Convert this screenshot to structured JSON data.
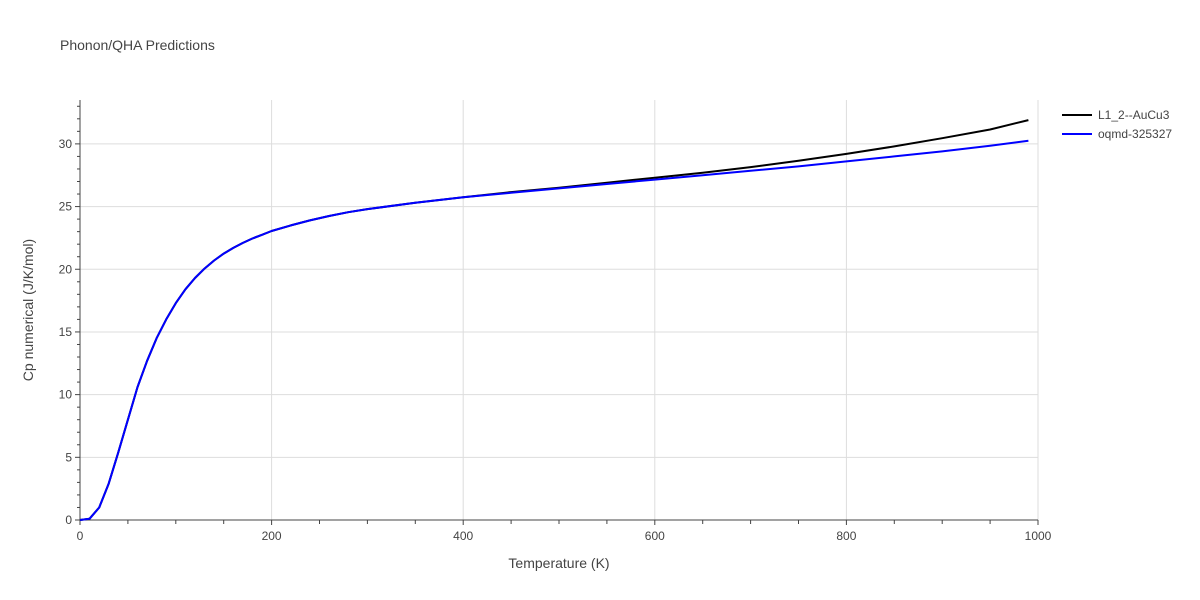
{
  "chart_data": {
    "type": "line",
    "title": "Phonon/QHA Predictions",
    "xlabel": "Temperature (K)",
    "ylabel": "Cp numerical (J/K/mol)",
    "xlim": [
      0,
      1000
    ],
    "ylim": [
      0,
      33.5
    ],
    "xticks": [
      0,
      200,
      400,
      600,
      800,
      1000
    ],
    "yticks": [
      0,
      5,
      10,
      15,
      20,
      25,
      30
    ],
    "grid": true,
    "legend_position": "top-right",
    "series": [
      {
        "name": "L1_2--AuCu3",
        "color": "#000000",
        "x": [
          0,
          10,
          20,
          30,
          40,
          50,
          60,
          70,
          80,
          90,
          100,
          110,
          120,
          130,
          140,
          150,
          160,
          170,
          180,
          190,
          200,
          220,
          240,
          260,
          280,
          300,
          350,
          400,
          450,
          500,
          550,
          600,
          650,
          700,
          750,
          800,
          850,
          900,
          950,
          990
        ],
        "y": [
          0,
          0.1,
          1.0,
          2.9,
          5.4,
          8.0,
          10.6,
          12.7,
          14.5,
          16.0,
          17.3,
          18.4,
          19.3,
          20.05,
          20.7,
          21.25,
          21.7,
          22.1,
          22.45,
          22.75,
          23.05,
          23.5,
          23.9,
          24.25,
          24.55,
          24.8,
          25.3,
          25.75,
          26.15,
          26.5,
          26.9,
          27.3,
          27.7,
          28.15,
          28.65,
          29.2,
          29.8,
          30.45,
          31.15,
          31.9
        ]
      },
      {
        "name": "oqmd-325327",
        "color": "#0000ff",
        "x": [
          0,
          10,
          20,
          30,
          40,
          50,
          60,
          70,
          80,
          90,
          100,
          110,
          120,
          130,
          140,
          150,
          160,
          170,
          180,
          190,
          200,
          220,
          240,
          260,
          280,
          300,
          350,
          400,
          450,
          500,
          550,
          600,
          650,
          700,
          750,
          800,
          850,
          900,
          950,
          990
        ],
        "y": [
          0,
          0.1,
          1.0,
          2.9,
          5.4,
          8.0,
          10.6,
          12.7,
          14.5,
          16.0,
          17.3,
          18.4,
          19.3,
          20.05,
          20.7,
          21.25,
          21.7,
          22.1,
          22.45,
          22.75,
          23.05,
          23.5,
          23.9,
          24.25,
          24.55,
          24.8,
          25.3,
          25.75,
          26.1,
          26.45,
          26.8,
          27.15,
          27.5,
          27.85,
          28.2,
          28.6,
          29.0,
          29.4,
          29.85,
          30.25
        ]
      }
    ]
  }
}
